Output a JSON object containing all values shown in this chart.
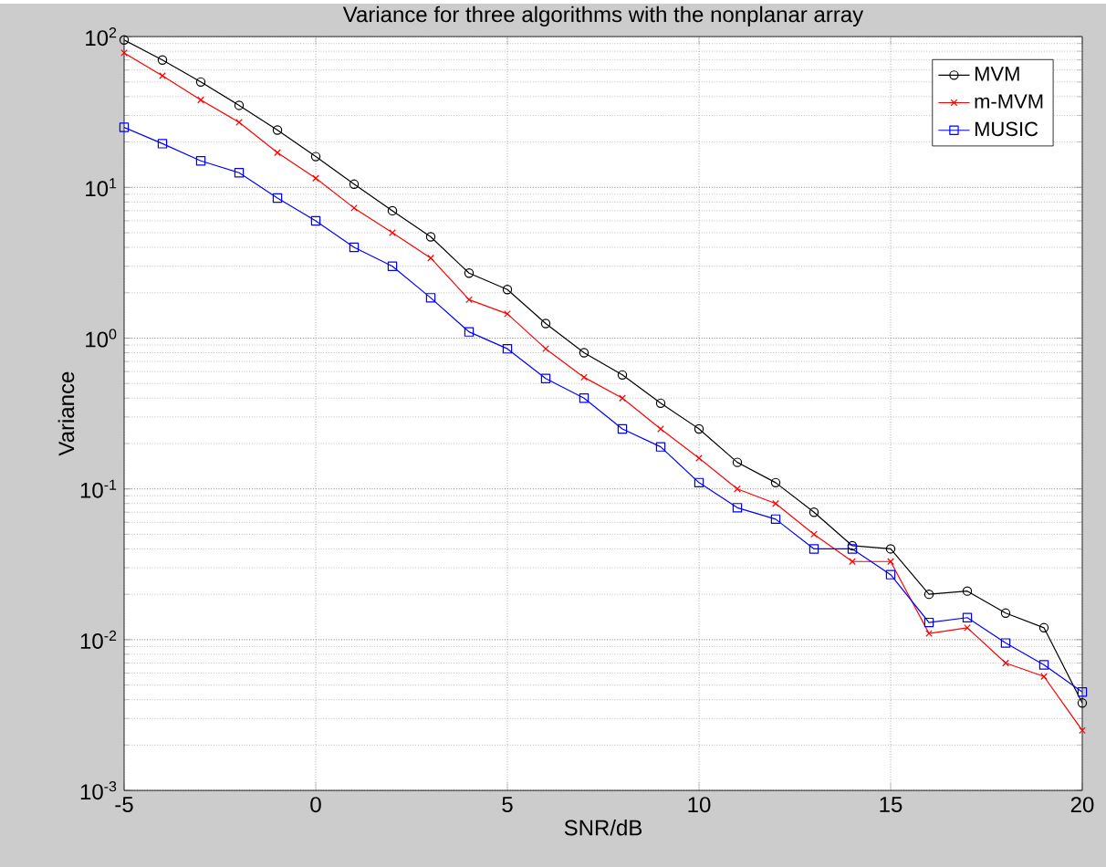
{
  "chart_data": {
    "type": "line",
    "title": "Variance for three algorithms with the nonplanar array",
    "xlabel": "SNR/dB",
    "ylabel": "Variance",
    "x": [
      -5,
      -4,
      -3,
      -2,
      -1,
      0,
      1,
      2,
      3,
      4,
      5,
      6,
      7,
      8,
      9,
      10,
      11,
      12,
      13,
      14,
      15,
      16,
      17,
      18,
      19,
      20
    ],
    "series": [
      {
        "name": "MVM",
        "color": "#000000",
        "marker": "circle",
        "values": [
          95,
          70,
          50,
          35,
          24,
          16,
          10.5,
          7,
          4.7,
          2.7,
          2.1,
          1.25,
          0.8,
          0.57,
          0.37,
          0.25,
          0.15,
          0.11,
          0.07,
          0.042,
          0.04,
          0.02,
          0.021,
          0.015,
          0.012,
          0.0038
        ]
      },
      {
        "name": "m-MVM",
        "color": "#ff0000",
        "marker": "cross",
        "values": [
          78,
          55,
          38,
          27,
          17,
          11.5,
          7.3,
          5,
          3.4,
          1.8,
          1.45,
          0.85,
          0.55,
          0.4,
          0.25,
          0.16,
          0.1,
          0.08,
          0.05,
          0.033,
          0.033,
          0.011,
          0.012,
          0.007,
          0.0057,
          0.0025
        ]
      },
      {
        "name": "MUSIC",
        "color": "#0000ff",
        "marker": "square",
        "values": [
          25,
          19.5,
          15,
          12.5,
          8.5,
          6,
          4,
          3,
          1.85,
          1.1,
          0.85,
          0.54,
          0.4,
          0.25,
          0.19,
          0.11,
          0.075,
          0.063,
          0.04,
          0.04,
          0.027,
          0.013,
          0.014,
          0.0095,
          0.0068,
          0.0045
        ]
      }
    ],
    "xlim": [
      -5,
      20
    ],
    "xticks": [
      -5,
      0,
      5,
      10,
      15,
      20
    ],
    "ylim": [
      0.001,
      100
    ],
    "yticks": [
      {
        "value": 0.001,
        "label": "10$^{-3}$"
      },
      {
        "value": 0.01,
        "label": "10$^{-2}$"
      },
      {
        "value": 0.1,
        "label": "10$^{-1}$"
      },
      {
        "value": 1,
        "label": "10$^{0}$"
      },
      {
        "value": 10,
        "label": "10$^{1}$"
      },
      {
        "value": 100,
        "label": "10$^{2}$"
      }
    ],
    "log": "y",
    "grid": true,
    "legend": "top right",
    "line_style": "solid"
  }
}
